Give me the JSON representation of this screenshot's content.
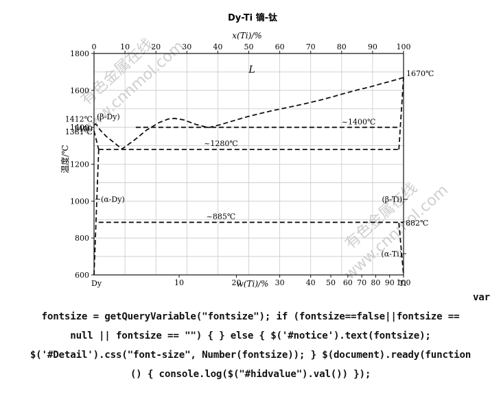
{
  "chart_data": {
    "type": "line",
    "title": "Dy-Ti   镝-钛",
    "xlabel_top": "x(Ti)/%",
    "xlabel_bottom": "w(Ti)/%",
    "ylabel": "温度/℃",
    "ylim": [
      600,
      1800
    ],
    "y_ticks": [
      "600",
      "800",
      "1000",
      "1200",
      "1400",
      "1600",
      "1800"
    ],
    "x_top_ticks": [
      "0",
      "10",
      "20",
      "30",
      "40",
      "50",
      "60",
      "70",
      "80",
      "90",
      "100"
    ],
    "x_bottom_ticks": [
      "10",
      "20",
      "30",
      "40",
      "50",
      "60",
      "70",
      "80",
      "90",
      "100"
    ],
    "element_left": "Dy",
    "element_right": "Ti",
    "grid": true,
    "series": [
      {
        "x": [
          0,
          0.5,
          1,
          2,
          4,
          7,
          9,
          13,
          17,
          21,
          24,
          26,
          29,
          33,
          37,
          41,
          45,
          49,
          53,
          57,
          61,
          65,
          69,
          73,
          77,
          81,
          85,
          89,
          93,
          95,
          97,
          98.5,
          100
        ],
        "y": [
          1412,
          1418,
          1410,
          1385,
          1350,
          1310,
          1282,
          1330,
          1385,
          1425,
          1445,
          1448,
          1440,
          1415,
          1398,
          1415,
          1435,
          1455,
          1472,
          1488,
          1502,
          1516,
          1531,
          1547,
          1565,
          1584,
          1602,
          1618,
          1637,
          1646,
          1655,
          1662,
          1670
        ]
      },
      {
        "x": [
          0,
          1.5
        ],
        "y": [
          1381,
          1280
        ]
      },
      {
        "x": [
          0,
          1.5
        ],
        "y": [
          600,
          1280
        ]
      },
      {
        "x": [
          98.5,
          100
        ],
        "y": [
          1280,
          1670
        ]
      },
      {
        "x": [
          98.5,
          100
        ],
        "y": [
          882,
          600
        ]
      },
      {
        "x": [
          1.5,
          98.5
        ],
        "y": [
          1280,
          1280
        ]
      },
      {
        "x": [
          13.5,
          98.5
        ],
        "y": [
          1400,
          1400
        ]
      },
      {
        "x": [
          1.5,
          100
        ],
        "y": [
          885,
          885
        ]
      }
    ],
    "annotations": [
      {
        "text": "L",
        "x": 51,
        "y": 1710
      },
      {
        "text": "1670℃",
        "x": 100,
        "y": 1670
      },
      {
        "text": "(β-Dy)",
        "x": 0,
        "y": 1428
      },
      {
        "text": "1412℃",
        "x": 0,
        "y": 1412
      },
      {
        "text": "1400",
        "x": 0,
        "y": 1400
      },
      {
        "text": "1381℃",
        "x": 0,
        "y": 1381
      },
      {
        "text": "~1400℃",
        "x": 80,
        "y": 1400
      },
      {
        "text": "~1280℃",
        "x": 41,
        "y": 1280
      },
      {
        "text": "(α-Dy)",
        "x": 0,
        "y": 1010
      },
      {
        "text": "(β-Ti)",
        "x": 100,
        "y": 1010
      },
      {
        "text": "~885℃",
        "x": 41,
        "y": 885
      },
      {
        "text": "882℃",
        "x": 100,
        "y": 882
      },
      {
        "text": "(α-Ti)",
        "x": 100,
        "y": 715
      }
    ]
  },
  "watermark": [
    "有色金属在线",
    "www.cnnmol.com"
  ],
  "code_text": [
    "var",
    "fontsize = getQueryVariable(\"fontsize\"); if (fontsize==false||fontsize ==",
    "null || fontsize == \"\") { } else { $('#notice').text(fontsize);",
    "$('#Detail').css(\"font-size\", Number(fontsize)); } $(document).ready(function",
    "() { console.log($(\"#hidvalue\").val()) });"
  ],
  "colors": {
    "line": "#111111",
    "grid": "#c8c8c8",
    "watermark": "#cfcfcf"
  }
}
